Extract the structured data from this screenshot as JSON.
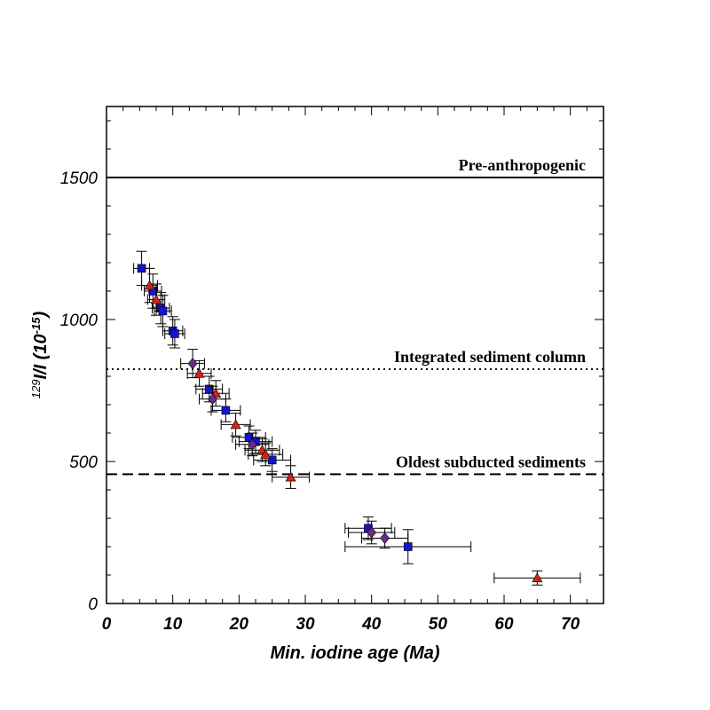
{
  "chart_data": {
    "type": "scatter",
    "title": "",
    "xlabel": "Min. iodine age (Ma)",
    "ylabel": {
      "sup": "129",
      "main": "I/I (10",
      "exp": "-15",
      "close": ")"
    },
    "xlim": [
      0,
      75
    ],
    "ylim": [
      0,
      1750
    ],
    "x_ticks": [
      0,
      10,
      20,
      30,
      40,
      50,
      60,
      70
    ],
    "y_ticks": [
      0,
      500,
      1000,
      1500
    ],
    "grid": false,
    "reference_lines": [
      {
        "label": "Pre-anthropogenic",
        "y": 1500,
        "style": "solid"
      },
      {
        "label": "Integrated sediment column",
        "y": 825,
        "style": "dotted"
      },
      {
        "label": "Oldest subducted sediments",
        "y": 455,
        "style": "dashed"
      }
    ],
    "series": [
      {
        "marker": "square",
        "color": "#1414d0",
        "points": [
          {
            "x": 5.3,
            "y": 1180,
            "xerr": 1.2,
            "yerr": 60
          },
          {
            "x": 7.0,
            "y": 1100,
            "xerr": 1.3,
            "yerr": 60
          },
          {
            "x": 8.2,
            "y": 1040,
            "xerr": 1.3,
            "yerr": 55
          },
          {
            "x": 8.5,
            "y": 1030,
            "xerr": 1.3,
            "yerr": 55
          },
          {
            "x": 10.0,
            "y": 960,
            "xerr": 1.5,
            "yerr": 50
          },
          {
            "x": 10.3,
            "y": 950,
            "xerr": 1.5,
            "yerr": 50
          },
          {
            "x": 15.5,
            "y": 755,
            "xerr": 2.0,
            "yerr": 45
          },
          {
            "x": 18.0,
            "y": 680,
            "xerr": 2.2,
            "yerr": 40
          },
          {
            "x": 21.5,
            "y": 585,
            "xerr": 2.5,
            "yerr": 40
          },
          {
            "x": 22.5,
            "y": 570,
            "xerr": 2.5,
            "yerr": 40
          },
          {
            "x": 25.0,
            "y": 505,
            "xerr": 2.8,
            "yerr": 40
          },
          {
            "x": 39.5,
            "y": 265,
            "xerr": 3.5,
            "yerr": 40
          },
          {
            "x": 45.5,
            "y": 200,
            "xerr": 9.5,
            "yerr": 60
          }
        ]
      },
      {
        "marker": "triangle",
        "color": "#d0241a",
        "points": [
          {
            "x": 6.5,
            "y": 1120,
            "xerr": 1.2,
            "yerr": 60
          },
          {
            "x": 7.5,
            "y": 1070,
            "xerr": 1.3,
            "yerr": 55
          },
          {
            "x": 14.0,
            "y": 810,
            "xerr": 1.8,
            "yerr": 45
          },
          {
            "x": 16.5,
            "y": 740,
            "xerr": 2.0,
            "yerr": 45
          },
          {
            "x": 19.5,
            "y": 630,
            "xerr": 2.2,
            "yerr": 40
          },
          {
            "x": 23.5,
            "y": 540,
            "xerr": 2.6,
            "yerr": 40
          },
          {
            "x": 24.0,
            "y": 525,
            "xerr": 2.6,
            "yerr": 40
          },
          {
            "x": 27.8,
            "y": 445,
            "xerr": 2.8,
            "yerr": 40
          },
          {
            "x": 65.0,
            "y": 90,
            "xerr": 6.5,
            "yerr": 25
          }
        ]
      },
      {
        "marker": "diamond",
        "color": "#6b2a8c",
        "points": [
          {
            "x": 13.0,
            "y": 845,
            "xerr": 1.8,
            "yerr": 50
          },
          {
            "x": 16.0,
            "y": 720,
            "xerr": 2.0,
            "yerr": 45
          },
          {
            "x": 22.0,
            "y": 560,
            "xerr": 2.5,
            "yerr": 40
          },
          {
            "x": 40.0,
            "y": 250,
            "xerr": 3.5,
            "yerr": 40
          },
          {
            "x": 42.0,
            "y": 230,
            "xerr": 3.5,
            "yerr": 35
          }
        ]
      }
    ]
  }
}
